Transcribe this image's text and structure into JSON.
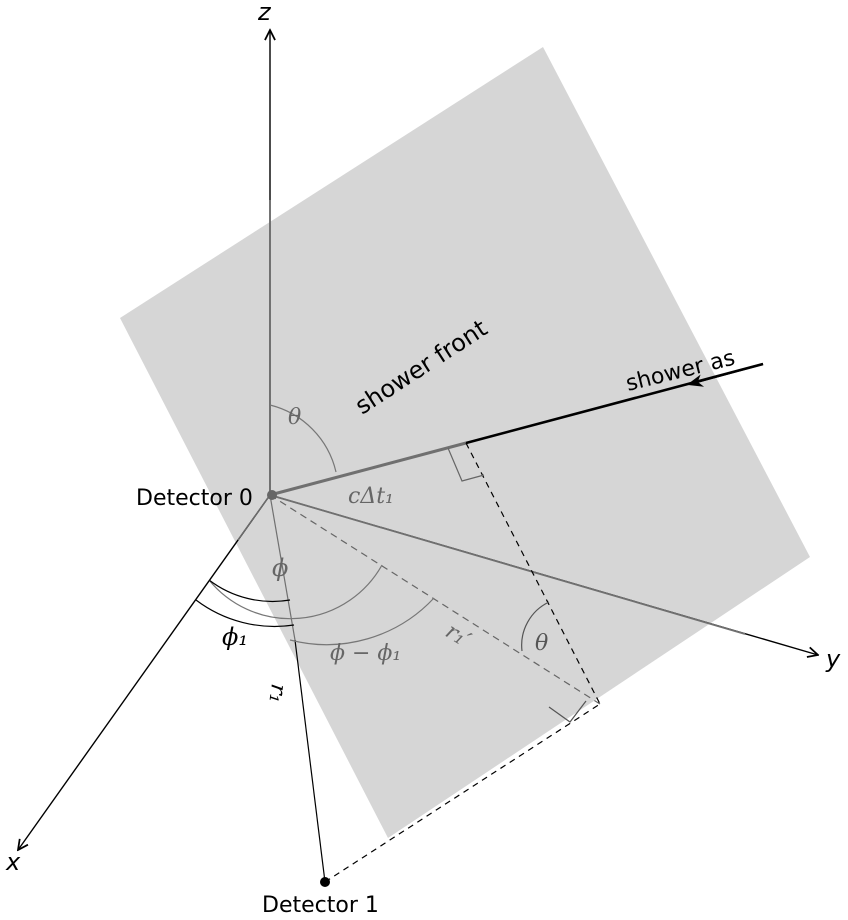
{
  "axes": {
    "z": "z",
    "y": "y",
    "x": "x"
  },
  "labels": {
    "shower_front": "shower front",
    "shower_axis": "shower as",
    "detector0": "Detector 0",
    "detector1": "Detector 1",
    "theta_top": "θ",
    "theta_lower": "θ",
    "phi": "ϕ",
    "phi1": "ϕ₁",
    "phi_minus_phi1": "ϕ − ϕ₁",
    "c_delta_t1": "cΔt₁",
    "r1": "r₁",
    "r1_prime": "r₁′"
  },
  "colors": {
    "plane": "#d6d6d6",
    "axis": "#000000",
    "grey_line": "#707070",
    "grey_text": "#666666"
  }
}
